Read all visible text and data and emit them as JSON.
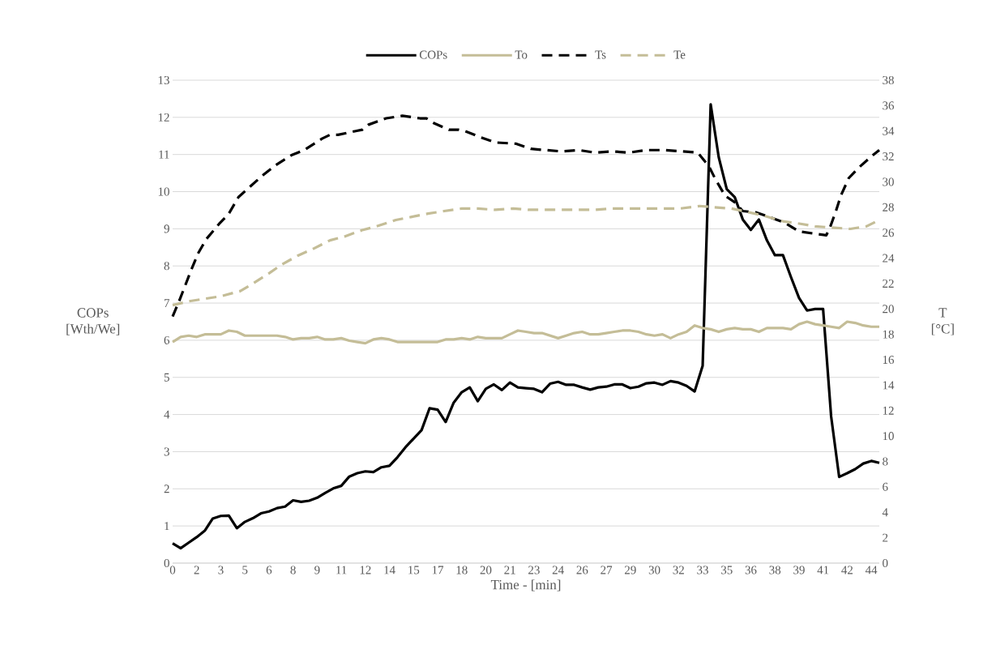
{
  "chart_data": {
    "type": "line",
    "xlabel": "Time - [min]",
    "ylabel": "COPs [Wth/We]",
    "y2label": "T [°C]",
    "x": [
      0,
      0.5,
      1,
      1.5,
      2,
      2.5,
      3,
      3.5,
      4,
      4.5,
      5,
      5.5,
      6,
      6.5,
      7,
      7.5,
      8,
      8.5,
      9,
      9.5,
      10,
      10.5,
      11,
      11.5,
      12,
      12.5,
      13,
      13.5,
      14,
      14.5,
      15,
      15.5,
      16,
      16.5,
      17,
      17.5,
      18,
      18.5,
      19,
      19.5,
      20,
      20.5,
      21,
      21.5,
      22,
      22.5,
      23,
      23.5,
      24,
      24.5,
      25,
      25.5,
      26,
      26.5,
      27,
      27.5,
      28,
      28.5,
      29,
      29.5,
      30,
      30.5,
      31,
      31.5,
      32,
      32.5,
      33,
      33.5,
      34,
      34.5,
      35,
      35.5,
      36,
      36.5,
      37,
      37.5,
      38,
      38.5,
      39,
      39.5,
      40,
      40.5,
      41,
      41.5,
      42,
      42.5,
      43,
      43.5,
      44
    ],
    "xlim": [
      0,
      44
    ],
    "xticks": [
      {
        "value": 0,
        "label": "0"
      },
      {
        "value": 1.5,
        "label": "2"
      },
      {
        "value": 3,
        "label": "3"
      },
      {
        "value": 4.5,
        "label": "5"
      },
      {
        "value": 6,
        "label": "6"
      },
      {
        "value": 7.5,
        "label": "8"
      },
      {
        "value": 9,
        "label": "9"
      },
      {
        "value": 10.5,
        "label": "11"
      },
      {
        "value": 12,
        "label": "12"
      },
      {
        "value": 13.5,
        "label": "14"
      },
      {
        "value": 15,
        "label": "15"
      },
      {
        "value": 16.5,
        "label": "17"
      },
      {
        "value": 18,
        "label": "18"
      },
      {
        "value": 19.5,
        "label": "20"
      },
      {
        "value": 21,
        "label": "21"
      },
      {
        "value": 22.5,
        "label": "23"
      },
      {
        "value": 24,
        "label": "24"
      },
      {
        "value": 25.5,
        "label": "26"
      },
      {
        "value": 27,
        "label": "27"
      },
      {
        "value": 28.5,
        "label": "29"
      },
      {
        "value": 30,
        "label": "30"
      },
      {
        "value": 31.5,
        "label": "32"
      },
      {
        "value": 33,
        "label": "33"
      },
      {
        "value": 34.5,
        "label": "35"
      },
      {
        "value": 36,
        "label": "36"
      },
      {
        "value": 37.5,
        "label": "38"
      },
      {
        "value": 39,
        "label": "39"
      },
      {
        "value": 40.5,
        "label": "41"
      },
      {
        "value": 42,
        "label": "42"
      },
      {
        "value": 43.5,
        "label": "44"
      }
    ],
    "ylim": [
      0,
      13
    ],
    "yticks": [
      0,
      1,
      2,
      3,
      4,
      5,
      6,
      7,
      8,
      9,
      10,
      11,
      12,
      13
    ],
    "y2lim": [
      0,
      38
    ],
    "y2ticks": [
      0,
      2,
      4,
      6,
      8,
      10,
      12,
      14,
      16,
      18,
      20,
      22,
      24,
      26,
      28,
      30,
      32,
      34,
      36,
      38
    ],
    "grid": "y",
    "legend": "top",
    "series": [
      {
        "name": "COPs",
        "color": "#000000",
        "line_style": "solid",
        "values": [
          0.53,
          0.4,
          0.55,
          0.7,
          0.87,
          1.2,
          1.27,
          1.28,
          0.94,
          1.11,
          1.21,
          1.34,
          1.39,
          1.48,
          1.52,
          1.69,
          1.65,
          1.68,
          1.76,
          1.89,
          2.01,
          2.08,
          2.33,
          2.42,
          2.47,
          2.45,
          2.58,
          2.62,
          2.85,
          3.12,
          3.35,
          3.58,
          4.17,
          4.13,
          3.8,
          4.32,
          4.6,
          4.73,
          4.36,
          4.69,
          4.81,
          4.66,
          4.86,
          4.73,
          4.71,
          4.69,
          4.6,
          4.83,
          4.88,
          4.8,
          4.8,
          4.73,
          4.67,
          4.73,
          4.75,
          4.81,
          4.81,
          4.71,
          4.75,
          4.84,
          4.86,
          4.8,
          4.9,
          4.86,
          4.77,
          4.62,
          5.31,
          12.35,
          10.93,
          10.07,
          9.85,
          9.25,
          8.97,
          9.25,
          8.69,
          8.29,
          8.29,
          7.7,
          7.14,
          6.8,
          6.84,
          6.84,
          3.95,
          2.32,
          2.42,
          2.53,
          2.68,
          2.75,
          2.7
        ]
      },
      {
        "name": "To",
        "color": "#c4bd97",
        "axis": "y2",
        "line_style": "solid",
        "values": [
          17.4,
          17.8,
          17.9,
          17.8,
          18.0,
          18.0,
          18.0,
          18.3,
          18.2,
          17.9,
          17.9,
          17.9,
          17.9,
          17.9,
          17.8,
          17.6,
          17.7,
          17.7,
          17.8,
          17.6,
          17.6,
          17.7,
          17.5,
          17.4,
          17.3,
          17.6,
          17.7,
          17.6,
          17.4,
          17.4,
          17.4,
          17.4,
          17.4,
          17.4,
          17.6,
          17.6,
          17.7,
          17.6,
          17.8,
          17.7,
          17.7,
          17.7,
          18.0,
          18.3,
          18.2,
          18.1,
          18.1,
          17.9,
          17.7,
          17.9,
          18.1,
          18.2,
          18.0,
          18.0,
          18.1,
          18.2,
          18.3,
          18.3,
          18.2,
          18.0,
          17.9,
          18.0,
          17.7,
          18.0,
          18.2,
          18.7,
          18.5,
          18.4,
          18.2,
          18.4,
          18.5,
          18.4,
          18.4,
          18.2,
          18.5,
          18.5,
          18.5,
          18.4,
          18.8,
          19.0,
          18.8,
          18.7,
          18.6,
          18.5,
          19.0,
          18.9,
          18.7,
          18.6,
          18.6
        ]
      },
      {
        "name": "Ts",
        "color": "#000000",
        "axis": "y2",
        "line_style": "dashed",
        "x": [
          0,
          0.4,
          0.8,
          1.2,
          1.6,
          2.1,
          2.9,
          3.5,
          4.1,
          4.8,
          5.6,
          6.4,
          7.4,
          8.2,
          9.3,
          9.8,
          10.3,
          11.4,
          11.8,
          12.2,
          13.3,
          14.3,
          15.4,
          15.8,
          16.3,
          17.2,
          17.8,
          18.2,
          19.2,
          20.1,
          21.4,
          22.3,
          23.2,
          24.2,
          25.3,
          26.3,
          27.4,
          28.4,
          29.5,
          30.6,
          31.7,
          32.7,
          33.4,
          33.8,
          34.4,
          35.0,
          35.5,
          36.3,
          37.0,
          38.1,
          39.0,
          40.1,
          40.7,
          40.9,
          41.3,
          41.6,
          42.1,
          42.7,
          43.6,
          44
        ],
        "values": [
          19.4,
          20.6,
          21.9,
          23.2,
          24.4,
          25.5,
          26.7,
          27.5,
          28.8,
          29.6,
          30.5,
          31.3,
          32.1,
          32.5,
          33.4,
          33.7,
          33.7,
          34.0,
          34.1,
          34.5,
          35.0,
          35.2,
          35.0,
          35.0,
          34.6,
          34.1,
          34.1,
          34.0,
          33.5,
          33.1,
          33.0,
          32.6,
          32.5,
          32.4,
          32.5,
          32.3,
          32.4,
          32.3,
          32.5,
          32.5,
          32.4,
          32.3,
          31.2,
          30.2,
          28.9,
          28.4,
          27.7,
          27.6,
          27.3,
          26.8,
          26.1,
          25.9,
          25.8,
          26.3,
          27.7,
          28.9,
          30.3,
          31.1,
          32.1,
          32.5
        ]
      },
      {
        "name": "Te",
        "color": "#c4bd97",
        "axis": "y2",
        "line_style": "dashed",
        "x": [
          0,
          1,
          2,
          3,
          4.2,
          5,
          6,
          6.8,
          7.8,
          8.7,
          9.8,
          10.7,
          11.8,
          12.7,
          13.9,
          14.7,
          15.9,
          16.9,
          18,
          19,
          20.1,
          21.2,
          22.2,
          25.2,
          26.3,
          27.3,
          28.4,
          31.6,
          32.8,
          33.7,
          34.8,
          35.9,
          36.9,
          38,
          39.1,
          40,
          42.2,
          43.2,
          44
        ],
        "values": [
          20.3,
          20.6,
          20.8,
          21.0,
          21.4,
          22.0,
          22.8,
          23.5,
          24.2,
          24.7,
          25.4,
          25.7,
          26.2,
          26.5,
          27.0,
          27.2,
          27.5,
          27.7,
          27.9,
          27.9,
          27.8,
          27.9,
          27.8,
          27.8,
          27.8,
          27.9,
          27.9,
          27.9,
          28.1,
          28.0,
          27.9,
          27.6,
          27.3,
          26.9,
          26.7,
          26.5,
          26.3,
          26.5,
          27.0
        ]
      }
    ]
  }
}
